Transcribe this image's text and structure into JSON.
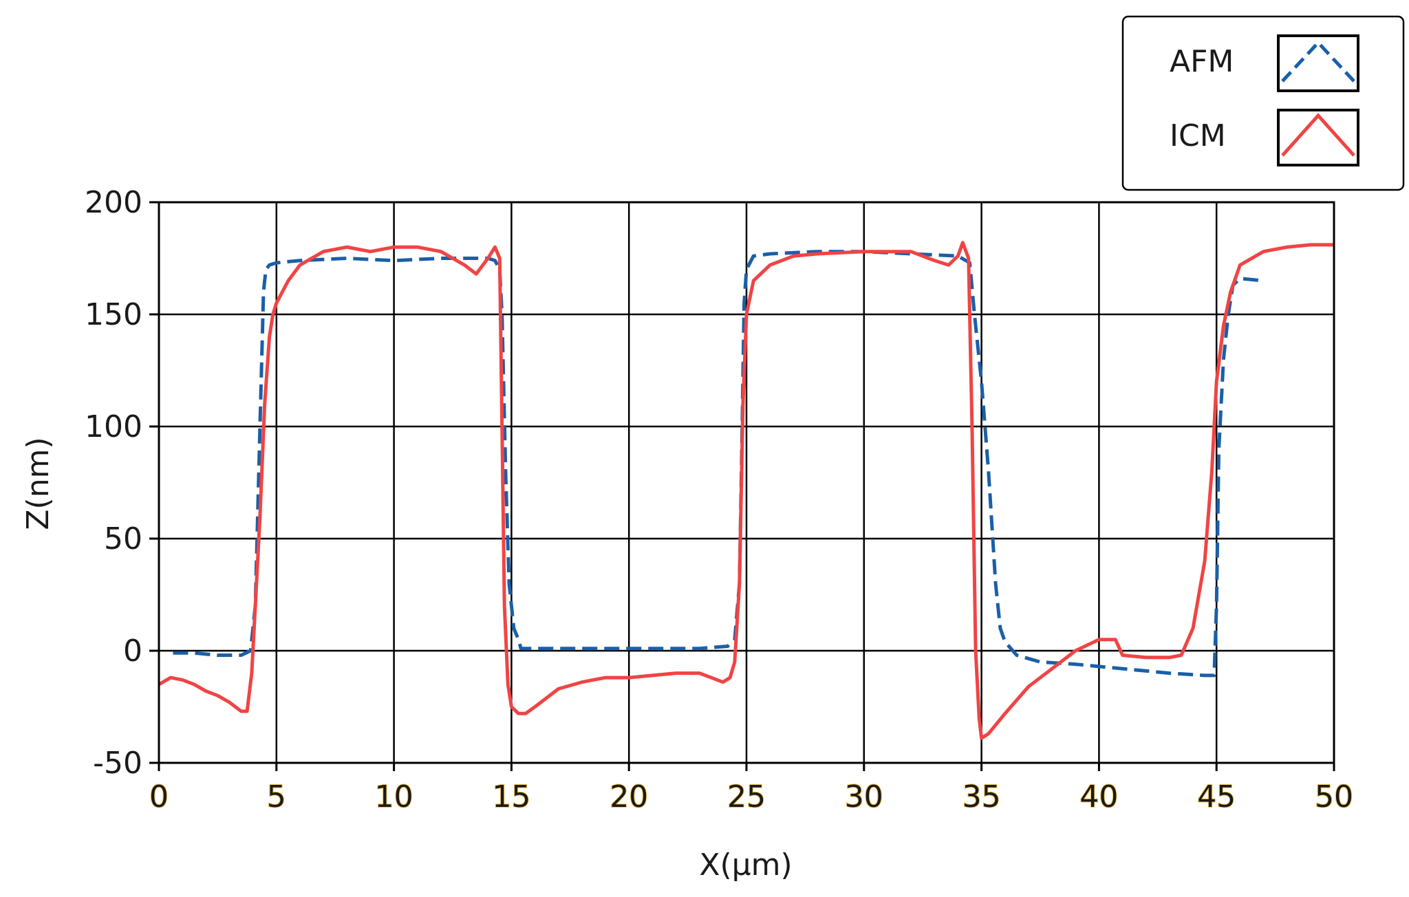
{
  "chart_data": {
    "type": "line",
    "xlabel": "X(μm)",
    "ylabel": "Z(nm)",
    "xlim": [
      0,
      50
    ],
    "ylim": [
      -50,
      200
    ],
    "x_ticks": [
      0,
      5,
      10,
      15,
      20,
      25,
      30,
      35,
      40,
      45,
      50
    ],
    "y_ticks": [
      -50,
      0,
      50,
      100,
      150,
      200
    ],
    "x_tick_labels": [
      "0",
      "5",
      "10",
      "15",
      "20",
      "25",
      "30",
      "35",
      "40",
      "45",
      "50"
    ],
    "y_tick_labels": [
      "-50",
      "0",
      "50",
      "100",
      "150",
      "200"
    ],
    "grid": true,
    "legend_position": "top-right (outside plot)",
    "series": [
      {
        "name": "AFM",
        "color": "#1a5fa8",
        "style": "dashed",
        "x": [
          0.6,
          1.5,
          2.5,
          3.5,
          3.9,
          4.1,
          4.2,
          4.35,
          4.45,
          4.55,
          4.7,
          5.0,
          6.0,
          8.0,
          10.0,
          12.0,
          14.0,
          14.3,
          14.5,
          14.6,
          14.75,
          14.9,
          15.1,
          15.3,
          15.4,
          15.6,
          17,
          20,
          23,
          24.2,
          24.5,
          24.7,
          24.8,
          24.9,
          25.0,
          25.3,
          26,
          28,
          30,
          32,
          34,
          34.5,
          34.7,
          35.0,
          35.3,
          35.6,
          35.8,
          36.0,
          36.5,
          37.5,
          39,
          41,
          43,
          44.5,
          44.9,
          45.0,
          45.1,
          45.3,
          45.5,
          45.7,
          46.0,
          47.0
        ],
        "y": [
          -1,
          -1,
          -2,
          -2,
          0,
          20,
          60,
          120,
          160,
          170,
          172,
          173,
          174,
          175,
          174,
          175,
          175,
          174,
          170,
          150,
          80,
          30,
          10,
          5,
          1,
          1,
          1,
          1,
          1,
          2,
          5,
          30,
          90,
          155,
          170,
          176,
          177,
          178,
          178,
          177,
          176,
          173,
          150,
          120,
          80,
          30,
          10,
          4,
          -2,
          -5,
          -6,
          -8,
          -10,
          -11,
          -11,
          20,
          90,
          130,
          150,
          163,
          166,
          165
        ]
      },
      {
        "name": "ICM",
        "color": "#f04444",
        "style": "solid",
        "x": [
          0,
          0.5,
          1,
          1.5,
          2,
          2.5,
          3,
          3.5,
          3.75,
          3.95,
          4.1,
          4.3,
          4.5,
          4.7,
          4.85,
          5.0,
          5.5,
          6,
          7,
          8,
          9,
          10,
          11,
          12,
          13,
          13.5,
          14,
          14.3,
          14.5,
          14.6,
          14.7,
          14.85,
          15.0,
          15.3,
          15.6,
          16,
          17,
          18,
          19,
          20,
          21,
          22,
          23,
          23.5,
          24.0,
          24.3,
          24.5,
          24.7,
          24.85,
          25.0,
          25.3,
          26,
          27,
          28,
          30,
          32,
          33,
          33.6,
          34.0,
          34.2,
          34.45,
          34.6,
          34.75,
          34.9,
          35.0,
          35.3,
          36,
          37,
          38,
          39,
          40,
          40.7,
          41,
          42,
          43,
          43.5,
          44,
          44.5,
          44.8,
          45.0,
          45.3,
          45.6,
          46,
          47,
          48,
          49,
          50
        ],
        "y": [
          -15,
          -12,
          -13,
          -15,
          -18,
          -20,
          -23,
          -27,
          -27,
          -10,
          20,
          60,
          110,
          140,
          150,
          155,
          165,
          172,
          178,
          180,
          178,
          180,
          180,
          178,
          172,
          168,
          175,
          180,
          175,
          100,
          20,
          -15,
          -25,
          -28,
          -28,
          -25,
          -17,
          -14,
          -12,
          -12,
          -11,
          -10,
          -10,
          -12,
          -14,
          -12,
          -5,
          30,
          110,
          150,
          165,
          172,
          176,
          177,
          178,
          178,
          174,
          172,
          176,
          182,
          175,
          100,
          0,
          -30,
          -39,
          -37,
          -28,
          -16,
          -8,
          0,
          5,
          5,
          -2,
          -3,
          -3,
          -2,
          10,
          40,
          80,
          120,
          145,
          160,
          172,
          178,
          180,
          181,
          181
        ]
      }
    ]
  }
}
